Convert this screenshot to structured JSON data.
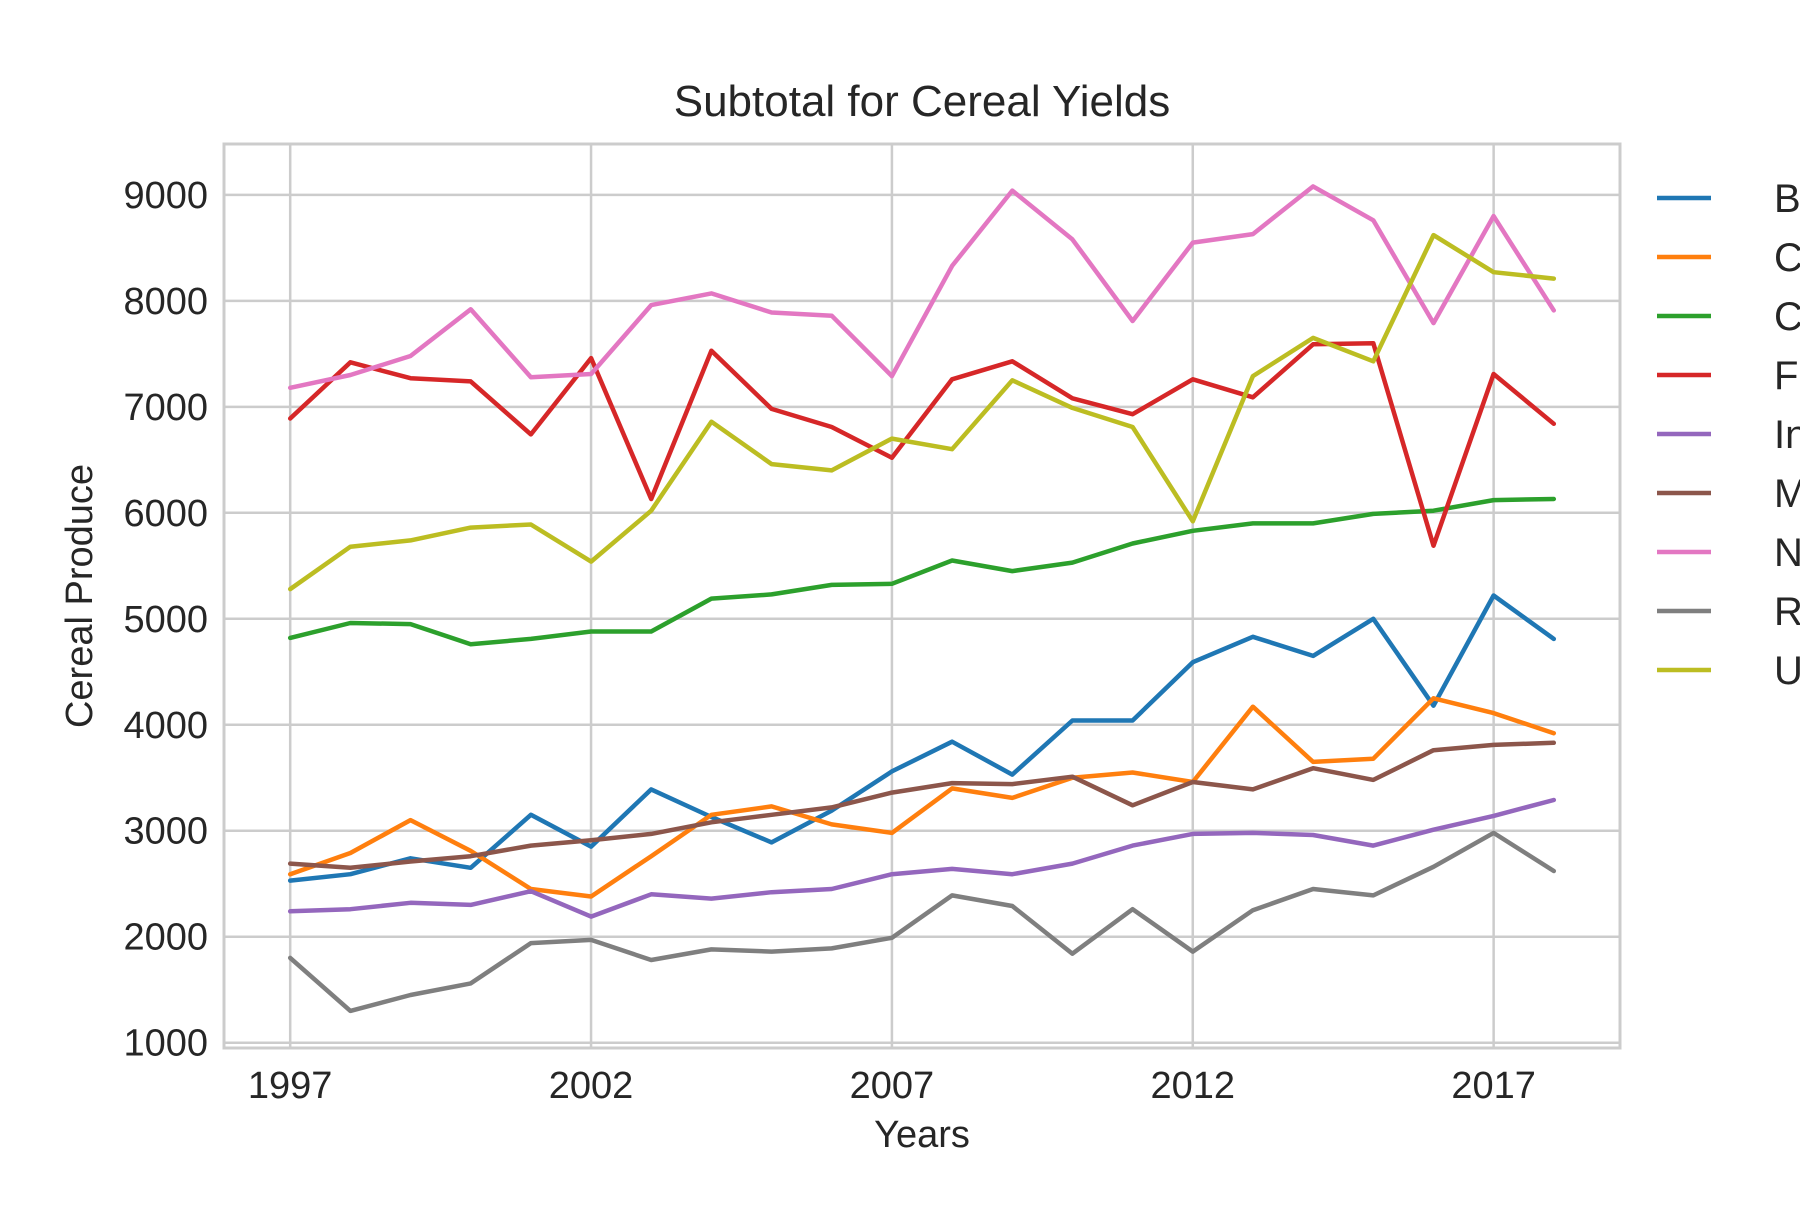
{
  "chart_data": {
    "type": "line",
    "title": "Subtotal for Cereal Yields",
    "xlabel": "Years",
    "ylabel": "Cereal Produce",
    "xlim": [
      1995.9,
      2019.1
    ],
    "ylim": [
      950,
      9480
    ],
    "x_ticks": [
      1997,
      2002,
      2007,
      2012,
      2017
    ],
    "y_ticks": [
      1000,
      2000,
      3000,
      4000,
      5000,
      6000,
      7000,
      8000,
      9000
    ],
    "grid": true,
    "legend_position": "right (outside plot, partially cut off)",
    "x": [
      1997,
      1998,
      1999,
      2000,
      2001,
      2002,
      2003,
      2004,
      2005,
      2006,
      2007,
      2008,
      2009,
      2010,
      2011,
      2012,
      2013,
      2014,
      2015,
      2016,
      2017,
      2018
    ],
    "series": [
      {
        "name": "B",
        "color": "#1f77b4",
        "values": [
          2530,
          2590,
          2740,
          2650,
          3150,
          2850,
          3390,
          3130,
          2890,
          3190,
          3560,
          3840,
          3530,
          4040,
          4040,
          4590,
          4830,
          4650,
          5000,
          4180,
          5220,
          4810
        ]
      },
      {
        "name": "C",
        "color": "#ff7f0e",
        "values": [
          2590,
          2790,
          3100,
          2810,
          2450,
          2380,
          2760,
          3150,
          3230,
          3060,
          2980,
          3400,
          3310,
          3500,
          3550,
          3460,
          4170,
          3650,
          3680,
          4250,
          4110,
          3920
        ]
      },
      {
        "name": "C",
        "color": "#2ca02c",
        "values": [
          4820,
          4960,
          4950,
          4760,
          4810,
          4880,
          4880,
          5190,
          5230,
          5320,
          5330,
          5550,
          5450,
          5530,
          5710,
          5830,
          5900,
          5900,
          5990,
          6020,
          6120,
          6130
        ]
      },
      {
        "name": "F",
        "color": "#d62728",
        "values": [
          6890,
          7420,
          7270,
          7240,
          6740,
          7460,
          6130,
          7530,
          6980,
          6810,
          6520,
          7260,
          7430,
          7080,
          6930,
          7260,
          7090,
          7590,
          7600,
          5690,
          7310,
          6840
        ]
      },
      {
        "name": "In",
        "color": "#9467bd",
        "values": [
          2240,
          2260,
          2320,
          2300,
          2430,
          2190,
          2400,
          2360,
          2420,
          2450,
          2590,
          2640,
          2590,
          2690,
          2860,
          2970,
          2980,
          2960,
          2860,
          3010,
          3140,
          3290
        ]
      },
      {
        "name": "M",
        "color": "#8c564b",
        "values": [
          2690,
          2650,
          2710,
          2760,
          2860,
          2910,
          2970,
          3080,
          3150,
          3220,
          3360,
          3450,
          3440,
          3510,
          3240,
          3460,
          3390,
          3590,
          3480,
          3760,
          3810,
          3830
        ]
      },
      {
        "name": "N",
        "color": "#e377c2",
        "values": [
          7180,
          7300,
          7480,
          7920,
          7280,
          7310,
          7960,
          8070,
          7890,
          7860,
          7290,
          8330,
          9040,
          8580,
          7810,
          8550,
          8630,
          9080,
          8760,
          7790,
          8800,
          7910
        ]
      },
      {
        "name": "R",
        "color": "#7f7f7f",
        "values": [
          1800,
          1300,
          1450,
          1560,
          1940,
          1970,
          1780,
          1880,
          1860,
          1890,
          1990,
          2390,
          2290,
          1840,
          2260,
          1860,
          2250,
          2450,
          2390,
          2660,
          2980,
          2620
        ]
      },
      {
        "name": "U",
        "color": "#bcbd22",
        "values": [
          5280,
          5680,
          5740,
          5860,
          5890,
          5540,
          6020,
          6860,
          6460,
          6400,
          6700,
          6600,
          7250,
          6990,
          6810,
          5920,
          7290,
          7650,
          7430,
          8620,
          8270,
          8210
        ]
      }
    ]
  }
}
